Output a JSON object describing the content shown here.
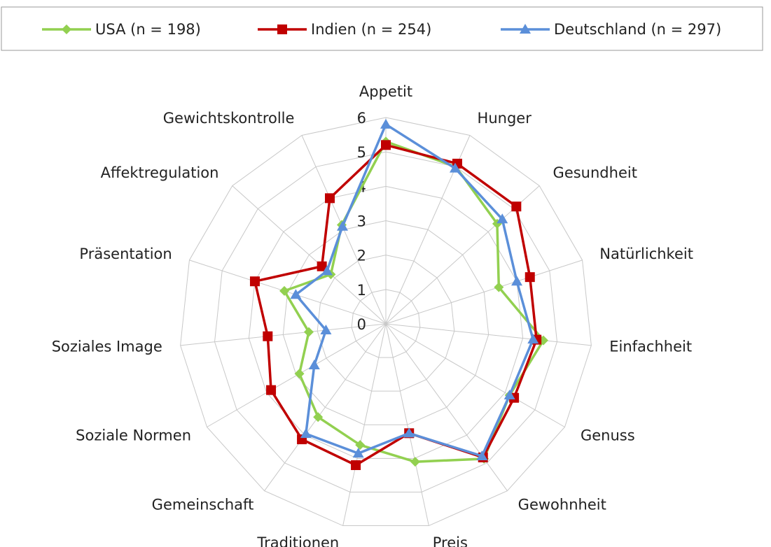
{
  "chart_data": {
    "type": "radar",
    "categories": [
      "Appetit",
      "Hunger",
      "Gesundheit",
      "Natürlichkeit",
      "Einfachheit",
      "Genuss",
      "Gewohnheit",
      "Preis",
      "Traditionen",
      "Gemeinschaft",
      "Soziale Normen",
      "Soziales Image",
      "Präsentation",
      "Affektregulation",
      "Gewichtskontrolle"
    ],
    "series": [
      {
        "name": "USA (n = 198)",
        "color": "#92d050",
        "marker": "diamond",
        "values": [
          5.3,
          5.0,
          4.35,
          3.45,
          4.6,
          4.15,
          4.85,
          4.1,
          3.6,
          3.35,
          2.9,
          2.25,
          3.1,
          2.15,
          3.15
        ]
      },
      {
        "name": "Indien (n = 254)",
        "color": "#c00000",
        "marker": "square",
        "values": [
          5.2,
          5.1,
          5.1,
          4.4,
          4.4,
          4.3,
          4.8,
          3.25,
          4.2,
          4.15,
          3.85,
          3.45,
          4.0,
          2.5,
          4.0
        ]
      },
      {
        "name": "Deutschland (n = 297)",
        "color": "#5b8fd9",
        "marker": "triangle",
        "values": [
          5.8,
          4.95,
          4.55,
          4.0,
          4.3,
          4.15,
          4.75,
          3.25,
          3.85,
          3.95,
          2.4,
          1.75,
          2.75,
          2.3,
          3.1
        ]
      }
    ],
    "ylim": [
      0,
      6
    ],
    "yticks": [
      0,
      1,
      2,
      3,
      4,
      5,
      6
    ],
    "grid": true,
    "legend": "top"
  }
}
